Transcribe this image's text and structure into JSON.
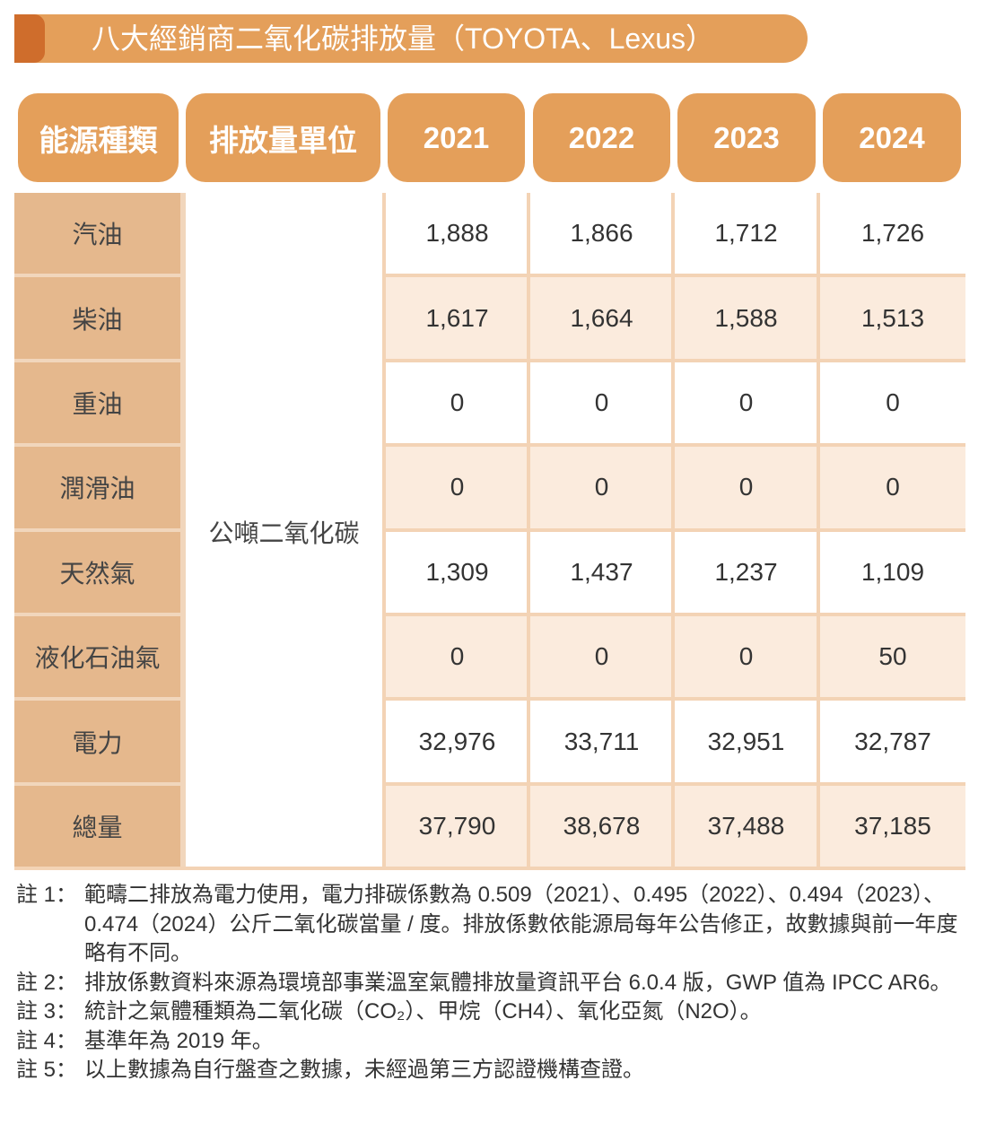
{
  "title": "八大經銷商二氧化碳排放量（TOYOTA、Lexus）",
  "colors": {
    "accent": "#E49F5A",
    "accent_dark": "#CF6D2C",
    "label_bg": "#E5B88D",
    "row_alt": "#FBEBDD"
  },
  "headers": [
    "能源種類",
    "排放量單位",
    "2021",
    "2022",
    "2023",
    "2024"
  ],
  "unit": "公噸二氧化碳",
  "rows": [
    {
      "label": "汽油",
      "values": [
        "1,888",
        "1,866",
        "1,712",
        "1,726"
      ]
    },
    {
      "label": "柴油",
      "values": [
        "1,617",
        "1,664",
        "1,588",
        "1,513"
      ]
    },
    {
      "label": "重油",
      "values": [
        "0",
        "0",
        "0",
        "0"
      ]
    },
    {
      "label": "潤滑油",
      "values": [
        "0",
        "0",
        "0",
        "0"
      ]
    },
    {
      "label": "天然氣",
      "values": [
        "1,309",
        "1,437",
        "1,237",
        "1,109"
      ]
    },
    {
      "label": "液化石油氣",
      "values": [
        "0",
        "0",
        "0",
        "50"
      ]
    },
    {
      "label": "電力",
      "values": [
        "32,976",
        "33,711",
        "32,951",
        "32,787"
      ]
    },
    {
      "label": "總量",
      "values": [
        "37,790",
        "38,678",
        "37,488",
        "37,185"
      ]
    }
  ],
  "notes": [
    {
      "key": "註 1：",
      "text": "範疇二排放為電力使用，電力排碳係數為 0.509（2021）、0.495（2022）、0.494（2023）、0.474（2024）公斤二氧化碳當量 / 度。排放係數依能源局每年公告修正，故數據與前一年度略有不同。"
    },
    {
      "key": "註 2：",
      "text": "排放係數資料來源為環境部事業溫室氣體排放量資訊平台 6.0.4 版，GWP 值為 IPCC AR6。"
    },
    {
      "key": "註 3：",
      "text": "統計之氣體種類為二氧化碳（CO₂）、甲烷（CH4）、氧化亞氮（N2O）。"
    },
    {
      "key": "註 4：",
      "text": "基準年為 2019 年。"
    },
    {
      "key": "註 5：",
      "text": "以上數據為自行盤查之數據，未經過第三方認證機構查證。"
    }
  ]
}
